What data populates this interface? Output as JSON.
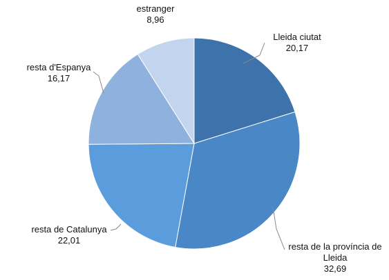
{
  "chart_data": {
    "type": "pie",
    "categories": [
      "Lleida ciutat",
      "resta de la província de Lleida",
      "resta de Catalunya",
      "resta d'Espanya",
      "estranger"
    ],
    "values": [
      20.17,
      32.69,
      22.01,
      16.17,
      8.96
    ],
    "value_labels": [
      "20,17",
      "32,69",
      "22,01",
      "16,17",
      "8,96"
    ],
    "colors": [
      "#3d72aa",
      "#4a87c6",
      "#5b9ddc",
      "#8fb1dd",
      "#c3d5ee"
    ]
  }
}
